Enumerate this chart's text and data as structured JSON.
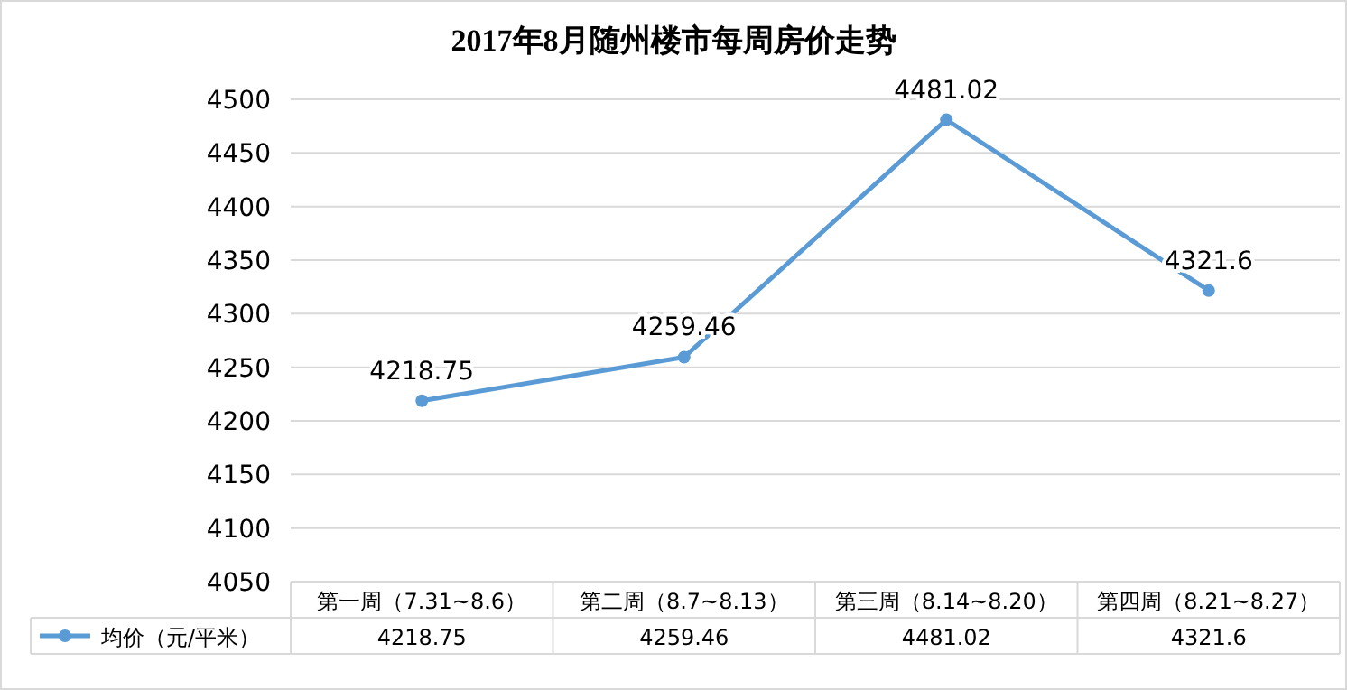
{
  "chart_data": {
    "type": "line",
    "title": "2017年8月随州楼市每周房价走势",
    "categories": [
      "第一周（7.31~8.6）",
      "第二周（8.7~8.13）",
      "第三周（8.14~8.20）",
      "第四周（8.21~8.27）"
    ],
    "series": [
      {
        "name": "均价（元/平米）",
        "color": "#5b9bd5",
        "values": [
          4218.75,
          4259.46,
          4481.02,
          4321.6
        ]
      }
    ],
    "annotations": [
      {
        "text": "4218.75",
        "x": "第一周（7.31~8.6）",
        "y": 4218.75
      },
      {
        "text": "4259.46",
        "x": "第二周（8.7~8.13）",
        "y": 4259.46
      },
      {
        "text": "4481.02",
        "x": "第三周（8.14~8.20）",
        "y": 4481.02
      },
      {
        "text": "4321.6",
        "x": "第四周（8.21~8.27）",
        "y": 4321.6
      }
    ],
    "ylim": [
      4050,
      4500
    ],
    "yticks": [
      4050,
      4100,
      4150,
      4200,
      4250,
      4300,
      4350,
      4400,
      4450,
      4500
    ],
    "grid": "y",
    "data_labels": true,
    "marker": "circle",
    "line_style": "solid",
    "legend": "bottom"
  }
}
